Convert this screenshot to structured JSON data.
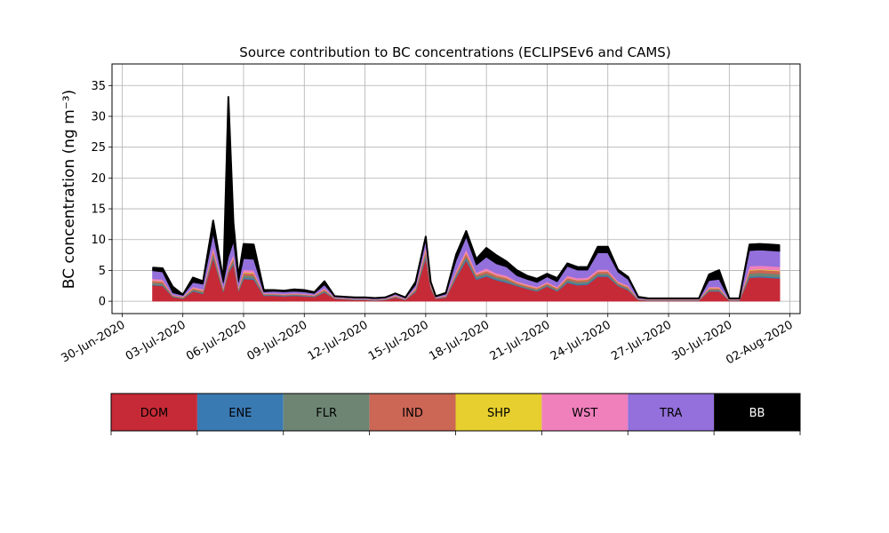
{
  "chart_data": {
    "type": "area",
    "title": "Source contribution to BC concentrations (ECLIPSEv6 and CAMS)",
    "ylabel": "BC concentration (ng m⁻³)",
    "xlabel": "",
    "ylim": [
      -2,
      38.5
    ],
    "xlim": [
      "2020-06-29T12:00",
      "2020-08-02T12:00"
    ],
    "grid": true,
    "x_ticks": [
      "30-Jun-2020",
      "03-Jul-2020",
      "06-Jul-2020",
      "09-Jul-2020",
      "12-Jul-2020",
      "15-Jul-2020",
      "18-Jul-2020",
      "21-Jul-2020",
      "24-Jul-2020",
      "27-Jul-2020",
      "30-Jul-2020",
      "02-Aug-2020"
    ],
    "y_ticks": [
      0,
      5,
      10,
      15,
      20,
      25,
      30,
      35
    ],
    "x": [
      "2020-07-01T12:00",
      "2020-07-02T00:00",
      "2020-07-02T12:00",
      "2020-07-03T00:00",
      "2020-07-03T12:00",
      "2020-07-04T00:00",
      "2020-07-04T12:00",
      "2020-07-05T00:00",
      "2020-07-05T06:00",
      "2020-07-05T12:00",
      "2020-07-05T18:00",
      "2020-07-06T00:00",
      "2020-07-06T12:00",
      "2020-07-07T00:00",
      "2020-07-07T12:00",
      "2020-07-08T00:00",
      "2020-07-08T12:00",
      "2020-07-09T00:00",
      "2020-07-09T12:00",
      "2020-07-10T00:00",
      "2020-07-10T12:00",
      "2020-07-11T00:00",
      "2020-07-11T12:00",
      "2020-07-12T00:00",
      "2020-07-12T12:00",
      "2020-07-13T00:00",
      "2020-07-13T12:00",
      "2020-07-14T00:00",
      "2020-07-14T12:00",
      "2020-07-15T00:00",
      "2020-07-15T06:00",
      "2020-07-15T12:00",
      "2020-07-16T00:00",
      "2020-07-16T12:00",
      "2020-07-17T00:00",
      "2020-07-17T12:00",
      "2020-07-18T00:00",
      "2020-07-18T12:00",
      "2020-07-19T00:00",
      "2020-07-19T12:00",
      "2020-07-20T00:00",
      "2020-07-20T12:00",
      "2020-07-21T00:00",
      "2020-07-21T12:00",
      "2020-07-22T00:00",
      "2020-07-22T12:00",
      "2020-07-23T00:00",
      "2020-07-23T12:00",
      "2020-07-24T00:00",
      "2020-07-24T12:00",
      "2020-07-25T00:00",
      "2020-07-25T12:00",
      "2020-07-26T00:00",
      "2020-07-26T12:00",
      "2020-07-27T00:00",
      "2020-07-27T12:00",
      "2020-07-28T00:00",
      "2020-07-28T12:00",
      "2020-07-29T00:00",
      "2020-07-29T12:00",
      "2020-07-30T00:00",
      "2020-07-30T12:00",
      "2020-07-31T00:00",
      "2020-07-31T12:00",
      "2020-08-01T00:00",
      "2020-08-01T12:00"
    ],
    "series": [
      {
        "name": "DOM",
        "color": "#c62a37",
        "values": [
          2.6,
          2.5,
          0.7,
          0.4,
          1.6,
          1.2,
          7.0,
          1.5,
          4.6,
          6.0,
          1.6,
          3.6,
          3.5,
          0.9,
          0.9,
          0.8,
          0.9,
          0.8,
          0.7,
          1.4,
          0.4,
          0.3,
          0.2,
          0.2,
          0.1,
          0.2,
          0.6,
          0.2,
          1.5,
          7.0,
          2.0,
          0.4,
          0.6,
          3.8,
          6.6,
          3.5,
          4.0,
          3.4,
          3.0,
          2.5,
          2.0,
          1.6,
          2.4,
          1.6,
          3.0,
          2.6,
          2.7,
          4.0,
          4.0,
          2.5,
          1.8,
          0.2,
          0.1,
          0.1,
          0.1,
          0.1,
          0.1,
          0.1,
          1.6,
          1.6,
          0.1,
          0.1,
          3.8,
          3.9,
          3.8,
          3.7
        ]
      },
      {
        "name": "ENE",
        "color": "#3a7ab3",
        "values": [
          0.1,
          0.1,
          0.05,
          0.05,
          0.1,
          0.1,
          0.2,
          0.1,
          0.1,
          0.2,
          0.1,
          0.2,
          0.2,
          0.1,
          0.1,
          0.1,
          0.1,
          0.1,
          0.05,
          0.1,
          0.05,
          0.05,
          0.05,
          0.05,
          0.05,
          0.05,
          0.05,
          0.05,
          0.1,
          0.3,
          0.1,
          0.05,
          0.05,
          0.2,
          0.3,
          0.2,
          0.2,
          0.2,
          0.2,
          0.1,
          0.1,
          0.1,
          0.1,
          0.1,
          0.2,
          0.2,
          0.2,
          0.2,
          0.2,
          0.1,
          0.1,
          0.05,
          0.05,
          0.05,
          0.05,
          0.05,
          0.05,
          0.05,
          0.1,
          0.1,
          0.05,
          0.05,
          0.2,
          0.2,
          0.2,
          0.2
        ]
      },
      {
        "name": "FLR",
        "color": "#6e8573",
        "values": [
          0.3,
          0.3,
          0.1,
          0.1,
          0.2,
          0.2,
          0.5,
          0.2,
          0.3,
          0.4,
          0.2,
          0.4,
          0.4,
          0.1,
          0.1,
          0.1,
          0.1,
          0.1,
          0.1,
          0.2,
          0.05,
          0.05,
          0.05,
          0.05,
          0.05,
          0.05,
          0.1,
          0.05,
          0.2,
          0.5,
          0.2,
          0.05,
          0.1,
          0.3,
          0.4,
          0.3,
          0.3,
          0.3,
          0.3,
          0.2,
          0.2,
          0.2,
          0.2,
          0.2,
          0.3,
          0.3,
          0.3,
          0.3,
          0.3,
          0.2,
          0.2,
          0.05,
          0.05,
          0.05,
          0.05,
          0.05,
          0.05,
          0.05,
          0.2,
          0.2,
          0.05,
          0.05,
          0.5,
          0.5,
          0.5,
          0.5
        ]
      },
      {
        "name": "IND",
        "color": "#cc6655",
        "values": [
          0.3,
          0.3,
          0.1,
          0.1,
          0.2,
          0.2,
          0.5,
          0.2,
          0.3,
          0.4,
          0.2,
          0.4,
          0.4,
          0.1,
          0.1,
          0.1,
          0.1,
          0.1,
          0.1,
          0.2,
          0.05,
          0.05,
          0.05,
          0.05,
          0.05,
          0.05,
          0.1,
          0.05,
          0.2,
          0.5,
          0.2,
          0.05,
          0.1,
          0.3,
          0.5,
          0.3,
          0.4,
          0.3,
          0.3,
          0.2,
          0.2,
          0.2,
          0.2,
          0.2,
          0.3,
          0.3,
          0.3,
          0.3,
          0.3,
          0.2,
          0.2,
          0.05,
          0.05,
          0.05,
          0.05,
          0.05,
          0.05,
          0.05,
          0.2,
          0.2,
          0.05,
          0.05,
          0.5,
          0.5,
          0.5,
          0.5
        ]
      },
      {
        "name": "SHP",
        "color": "#e6cf2e",
        "values": [
          0.05,
          0.05,
          0.02,
          0.02,
          0.05,
          0.05,
          0.1,
          0.05,
          0.05,
          0.1,
          0.05,
          0.1,
          0.1,
          0.02,
          0.02,
          0.02,
          0.02,
          0.02,
          0.02,
          0.05,
          0.02,
          0.02,
          0.02,
          0.02,
          0.02,
          0.02,
          0.02,
          0.02,
          0.05,
          0.1,
          0.05,
          0.02,
          0.02,
          0.05,
          0.1,
          0.05,
          0.05,
          0.05,
          0.05,
          0.05,
          0.05,
          0.05,
          0.05,
          0.05,
          0.05,
          0.05,
          0.05,
          0.05,
          0.05,
          0.05,
          0.05,
          0.02,
          0.02,
          0.02,
          0.02,
          0.02,
          0.02,
          0.02,
          0.05,
          0.05,
          0.02,
          0.02,
          0.1,
          0.1,
          0.1,
          0.1
        ]
      },
      {
        "name": "WST",
        "color": "#f080bc",
        "values": [
          0.3,
          0.3,
          0.1,
          0.1,
          0.2,
          0.2,
          0.6,
          0.2,
          0.3,
          0.5,
          0.2,
          0.4,
          0.4,
          0.1,
          0.1,
          0.1,
          0.1,
          0.1,
          0.1,
          0.2,
          0.05,
          0.05,
          0.05,
          0.05,
          0.05,
          0.05,
          0.1,
          0.05,
          0.2,
          0.5,
          0.2,
          0.05,
          0.1,
          0.3,
          0.5,
          0.3,
          0.4,
          0.3,
          0.3,
          0.2,
          0.2,
          0.2,
          0.2,
          0.2,
          0.3,
          0.3,
          0.3,
          0.3,
          0.3,
          0.2,
          0.2,
          0.05,
          0.05,
          0.05,
          0.05,
          0.05,
          0.05,
          0.05,
          0.2,
          0.2,
          0.05,
          0.05,
          0.6,
          0.6,
          0.6,
          0.6
        ]
      },
      {
        "name": "TRA",
        "color": "#9370db",
        "values": [
          1.3,
          1.2,
          0.3,
          0.2,
          0.7,
          0.8,
          2.0,
          0.7,
          1.5,
          2.0,
          0.7,
          1.8,
          1.8,
          0.2,
          0.3,
          0.3,
          0.3,
          0.3,
          0.2,
          0.5,
          0.1,
          0.1,
          0.1,
          0.1,
          0.1,
          0.1,
          0.2,
          0.1,
          0.4,
          1.0,
          0.3,
          0.1,
          0.2,
          1.6,
          2.0,
          1.2,
          1.8,
          1.5,
          1.4,
          0.9,
          0.8,
          0.7,
          0.8,
          0.8,
          1.5,
          1.3,
          1.2,
          2.7,
          2.7,
          1.5,
          1.0,
          0.1,
          0.05,
          0.05,
          0.05,
          0.05,
          0.05,
          0.05,
          1.0,
          1.2,
          0.05,
          0.05,
          2.5,
          2.5,
          2.5,
          2.5
        ]
      },
      {
        "name": "BB",
        "color": "#000000",
        "values": [
          0.5,
          0.6,
          1.0,
          0.1,
          0.8,
          0.5,
          2.2,
          0.5,
          26.0,
          3.1,
          1.0,
          2.4,
          2.4,
          0.3,
          0.2,
          0.2,
          0.3,
          0.3,
          0.2,
          0.6,
          0.1,
          0.1,
          0.1,
          0.1,
          0.1,
          0.1,
          0.1,
          0.1,
          0.5,
          0.6,
          0.1,
          0.1,
          0.2,
          1.0,
          1.0,
          1.0,
          1.5,
          1.4,
          0.9,
          0.9,
          0.6,
          0.6,
          0.5,
          0.6,
          0.5,
          0.5,
          0.5,
          1.0,
          1.0,
          0.4,
          0.4,
          0.2,
          0.1,
          0.1,
          0.1,
          0.1,
          0.1,
          0.1,
          1.0,
          1.5,
          0.1,
          0.1,
          1.0,
          1.0,
          1.0,
          1.0
        ]
      }
    ]
  },
  "legend": {
    "items": [
      {
        "label": "DOM",
        "color": "#c62a37",
        "text_color": "#000000"
      },
      {
        "label": "ENE",
        "color": "#3a7ab3",
        "text_color": "#000000"
      },
      {
        "label": "FLR",
        "color": "#6e8573",
        "text_color": "#000000"
      },
      {
        "label": "IND",
        "color": "#cc6655",
        "text_color": "#000000"
      },
      {
        "label": "SHP",
        "color": "#e6cf2e",
        "text_color": "#000000"
      },
      {
        "label": "WST",
        "color": "#f080bc",
        "text_color": "#000000"
      },
      {
        "label": "TRA",
        "color": "#9370db",
        "text_color": "#000000"
      },
      {
        "label": "BB",
        "color": "#000000",
        "text_color": "#ffffff"
      }
    ]
  }
}
